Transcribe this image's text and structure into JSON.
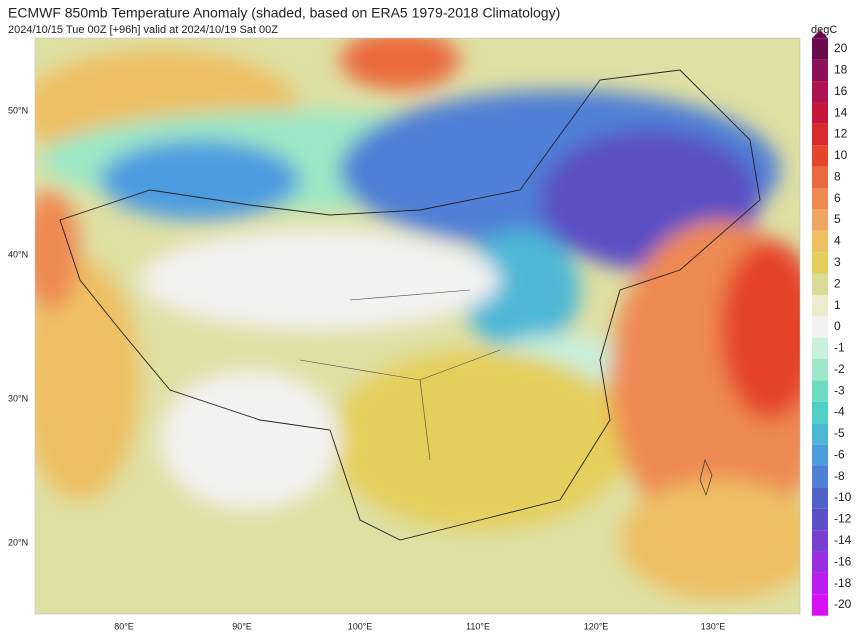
{
  "header": {
    "title": "ECMWF 850mb Temperature Anomaly (shaded, based on ERA5 1979-2018 Climatology)",
    "subtitle": "2024/10/15 Tue 00Z [+96h] valid at 2024/10/19 Sat 00Z"
  },
  "map": {
    "lat_labels": [
      "50°N",
      "40°N",
      "30°N",
      "20°N"
    ],
    "lon_labels": [
      "80°E",
      "90°E",
      "100°E",
      "110°E",
      "120°E",
      "130°E"
    ]
  },
  "colorbar": {
    "unit": "degC",
    "levels": [
      {
        "label": 20,
        "color": "#6b0a4f"
      },
      {
        "label": 18,
        "color": "#8e0f5a"
      },
      {
        "label": 16,
        "color": "#b0134f"
      },
      {
        "label": 14,
        "color": "#c8173e"
      },
      {
        "label": 12,
        "color": "#d92b2e"
      },
      {
        "label": 10,
        "color": "#e4452c"
      },
      {
        "label": 8,
        "color": "#eb6a3d"
      },
      {
        "label": 6,
        "color": "#ee8a52"
      },
      {
        "label": 5,
        "color": "#f0a660"
      },
      {
        "label": 4,
        "color": "#eec064"
      },
      {
        "label": 3,
        "color": "#e5cf5c"
      },
      {
        "label": 2,
        "color": "#d8dc95"
      },
      {
        "label": 1,
        "color": "#eaeccc"
      },
      {
        "label": 0,
        "color": "#f2f2f2"
      },
      {
        "label": -1,
        "color": "#c9f0dc"
      },
      {
        "label": -2,
        "color": "#9de8c6"
      },
      {
        "label": -3,
        "color": "#6edcc0"
      },
      {
        "label": -4,
        "color": "#4fcfc6"
      },
      {
        "label": -5,
        "color": "#4db8d6"
      },
      {
        "label": -6,
        "color": "#4d9ce0"
      },
      {
        "label": -8,
        "color": "#4f7fd6"
      },
      {
        "label": -10,
        "color": "#4e62c8"
      },
      {
        "label": -12,
        "color": "#5a4fc4"
      },
      {
        "label": -14,
        "color": "#7a3fd0"
      },
      {
        "label": -16,
        "color": "#9a2ee0"
      },
      {
        "label": -18,
        "color": "#bb1ff0"
      },
      {
        "label": -20,
        "color": "#d810f5"
      }
    ]
  }
}
